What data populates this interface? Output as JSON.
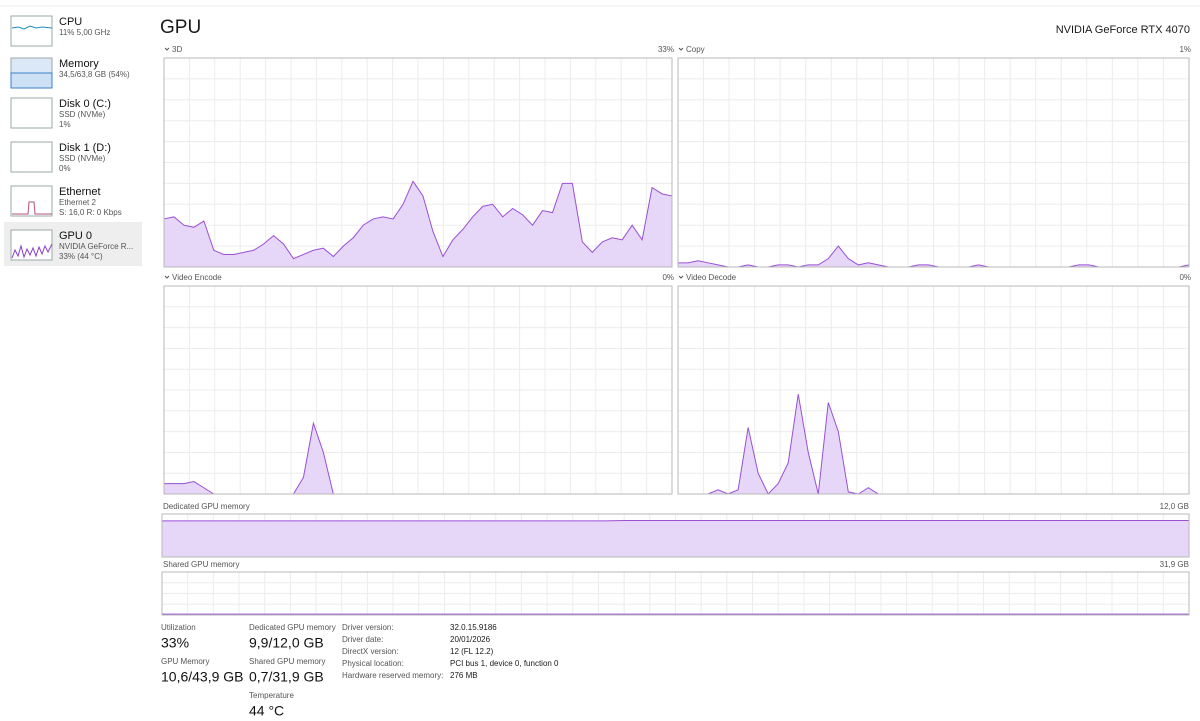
{
  "header": {
    "title": "GPU",
    "device": "NVIDIA GeForce RTX 4070"
  },
  "sidebar": [
    {
      "name": "CPU",
      "details": [
        "11% 5,00 GHz"
      ]
    },
    {
      "name": "Memory",
      "details": [
        "34,5/63,8 GB (54%)"
      ]
    },
    {
      "name": "Disk 0 (C:)",
      "details": [
        "SSD (NVMe)",
        "1%"
      ]
    },
    {
      "name": "Disk 1 (D:)",
      "details": [
        "SSD (NVMe)",
        "0%"
      ]
    },
    {
      "name": "Ethernet",
      "details": [
        "Ethernet 2",
        "S: 16,0 R: 0 Kbps"
      ]
    },
    {
      "name": "GPU 0",
      "details": [
        "NVIDIA GeForce R...",
        "33% (44 °C)"
      ]
    }
  ],
  "graphs": [
    {
      "label": "3D",
      "value_label": "33%",
      "values": [
        23,
        24,
        20,
        19,
        22,
        8,
        6,
        6,
        7,
        8,
        11,
        15,
        11,
        4,
        6,
        8,
        9,
        5,
        10,
        14,
        20,
        23,
        24,
        23,
        30,
        41,
        34,
        17,
        5,
        13,
        18,
        24,
        29,
        30,
        24,
        28,
        25,
        20,
        27,
        26,
        40,
        40,
        12,
        7,
        12,
        14,
        13,
        20,
        13,
        38,
        35,
        34
      ]
    },
    {
      "label": "Copy",
      "value_label": "1%",
      "values": [
        2,
        2,
        3,
        2,
        1,
        0,
        0,
        1,
        0,
        0,
        1,
        1,
        0,
        1,
        1,
        4,
        10,
        4,
        1,
        2,
        1,
        0,
        0,
        0,
        1,
        1,
        0,
        0,
        0,
        0,
        1,
        0,
        0,
        0,
        0,
        0,
        0,
        0,
        0,
        0,
        1,
        1,
        0,
        0,
        0,
        0,
        0,
        0,
        0,
        0,
        0,
        1
      ]
    },
    {
      "label": "Video Encode",
      "value_label": "0%",
      "values": [
        5,
        5,
        5,
        6,
        3,
        0,
        0,
        0,
        0,
        0,
        0,
        0,
        0,
        0,
        8,
        34,
        20,
        0,
        0,
        0,
        0,
        0,
        0,
        0,
        0,
        0,
        0,
        0,
        0,
        0,
        0,
        0,
        0,
        0,
        0,
        0,
        0,
        0,
        0,
        0,
        0,
        0,
        0,
        0,
        0,
        0,
        0,
        0,
        0,
        0,
        0,
        0
      ]
    },
    {
      "label": "Video Decode",
      "value_label": "0%",
      "values": [
        0,
        0,
        0,
        0,
        2,
        0,
        2,
        32,
        10,
        0,
        5,
        15,
        48,
        20,
        0,
        44,
        30,
        1,
        0,
        3,
        0,
        0,
        0,
        0,
        0,
        0,
        0,
        0,
        0,
        0,
        0,
        0,
        0,
        0,
        0,
        0,
        0,
        0,
        0,
        0,
        0,
        0,
        0,
        0,
        0,
        0,
        0,
        0,
        0,
        0,
        0,
        0
      ]
    }
  ],
  "memory_graphs": [
    {
      "label": "Dedicated GPU memory",
      "max_label": "12,0 GB",
      "values": [
        84,
        84,
        84,
        84,
        84,
        84,
        84,
        84,
        84,
        84,
        84,
        84,
        84,
        84,
        84,
        84,
        84,
        84,
        84,
        84,
        84,
        84,
        84,
        85,
        85,
        85,
        85,
        85,
        85,
        85,
        85,
        85,
        85,
        85,
        85,
        85,
        85,
        85,
        85,
        85,
        85,
        85,
        85,
        85,
        85,
        85,
        85,
        85,
        85,
        85,
        85,
        85
      ]
    },
    {
      "label": "Shared GPU memory",
      "max_label": "31,9 GB",
      "values": [
        2,
        2,
        2,
        2,
        2,
        2,
        2,
        2,
        2,
        2,
        2,
        2,
        2,
        2,
        2,
        2,
        2,
        2,
        2,
        2,
        2,
        2,
        2,
        2,
        2,
        2,
        2,
        2,
        2,
        2,
        2,
        2,
        2,
        2,
        2,
        2,
        2,
        2,
        2,
        2,
        2,
        2,
        2,
        2,
        2,
        2,
        2,
        2,
        2,
        2,
        2,
        2
      ]
    }
  ],
  "stats": [
    {
      "label": "Utilization",
      "value": "33%"
    },
    {
      "label": "GPU Memory",
      "value": "10,6/43,9 GB"
    },
    {
      "label": "Dedicated GPU memory",
      "value": "9,9/12,0 GB"
    },
    {
      "label": "Shared GPU memory",
      "value": "0,7/31,9 GB"
    },
    {
      "label": "Temperature",
      "value": "44 °C"
    }
  ],
  "details": [
    {
      "label": "Driver version:",
      "value": "32.0.15.9186"
    },
    {
      "label": "Driver date:",
      "value": "20/01/2026"
    },
    {
      "label": "DirectX version:",
      "value": "12 (FL 12.2)"
    },
    {
      "label": "Physical location:",
      "value": "PCI bus 1, device 0, function 0"
    },
    {
      "label": "Hardware reserved memory:",
      "value": "276 MB"
    }
  ]
}
